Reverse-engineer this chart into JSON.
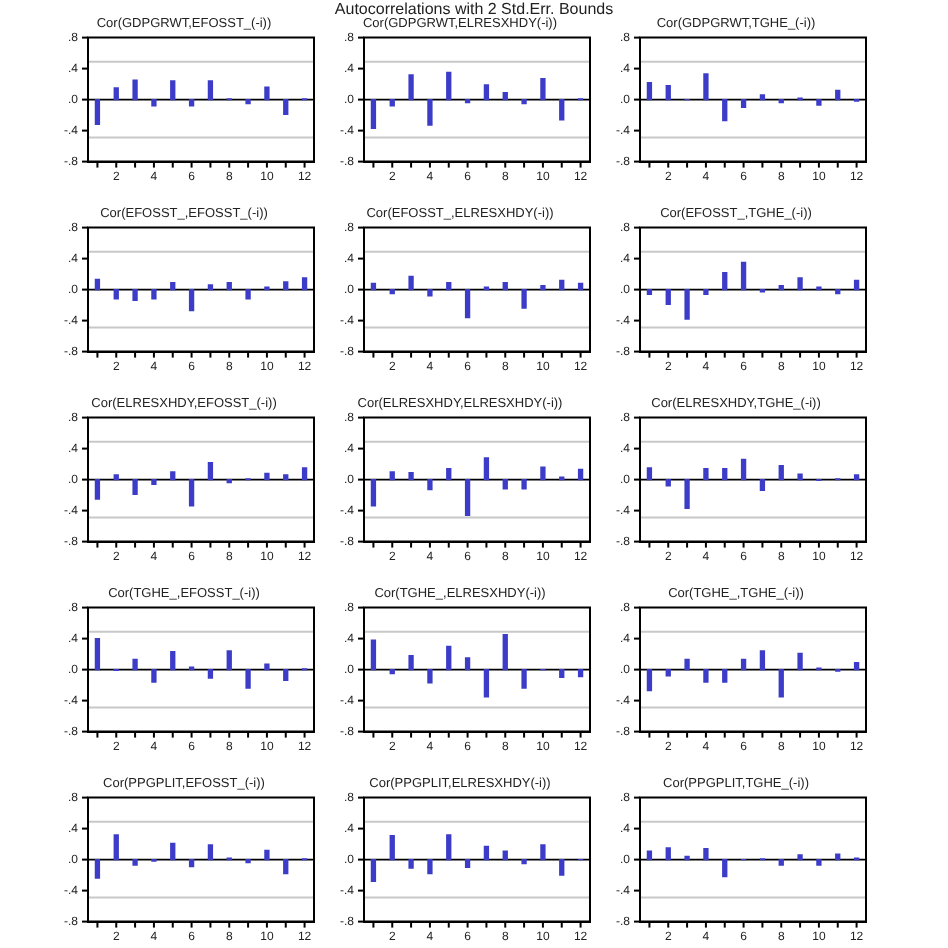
{
  "chart_data": [
    {
      "type": "bar",
      "annotations": [
        "Autocorrelations with 2 Std.Err. Bounds"
      ],
      "title": "Cor(GDPGRWT,EFOSST_(-i))",
      "x": [
        1,
        2,
        3,
        4,
        5,
        6,
        7,
        8,
        9,
        10,
        11,
        12
      ],
      "values": [
        -0.32,
        0.15,
        0.25,
        -0.08,
        0.24,
        -0.08,
        0.24,
        0.01,
        -0.05,
        0.16,
        -0.19,
        0.01
      ],
      "color": "#3c3cc8",
      "xlim": [
        0.5,
        12.5
      ],
      "xticks": [
        {
          "value": 1,
          "label": null
        },
        2,
        {
          "value": 3,
          "label": null
        },
        4,
        {
          "value": 5,
          "label": null
        },
        6,
        {
          "value": 7,
          "label": null
        },
        8,
        {
          "value": 9,
          "label": null
        },
        10,
        {
          "value": 11,
          "label": null
        },
        12
      ],
      "ylim": [
        -0.8,
        0.8
      ],
      "yticks": [
        {
          "value": -0.8,
          "label": "-.8"
        },
        {
          "value": -0.4,
          "label": "-.4"
        },
        {
          "value": 0,
          "label": ".0"
        },
        {
          "value": 0.4,
          "label": ".4"
        },
        {
          "value": 0.8,
          "label": ".8"
        }
      ],
      "ref_lines": [
        {
          "axis": "y",
          "value": 0.49,
          "color": "#c8c8c8"
        },
        {
          "axis": "y",
          "value": -0.49,
          "color": "#c8c8c8"
        }
      ]
    },
    {
      "type": "bar",
      "title": "Cor(GDPGRWT,ELRESXHDY(-i))",
      "x": [
        1,
        2,
        3,
        4,
        5,
        6,
        7,
        8,
        9,
        10,
        11,
        12
      ],
      "values": [
        -0.37,
        -0.08,
        0.32,
        -0.33,
        0.35,
        -0.04,
        0.19,
        0.09,
        -0.05,
        0.27,
        -0.26,
        0.01
      ],
      "color": "#3c3cc8",
      "xlim": [
        0.5,
        12.5
      ],
      "xticks": [
        {
          "value": 1,
          "label": null
        },
        2,
        {
          "value": 3,
          "label": null
        },
        4,
        {
          "value": 5,
          "label": null
        },
        6,
        {
          "value": 7,
          "label": null
        },
        8,
        {
          "value": 9,
          "label": null
        },
        10,
        {
          "value": 11,
          "label": null
        },
        12
      ],
      "ylim": [
        -0.8,
        0.8
      ],
      "yticks": [
        {
          "value": -0.8,
          "label": "-.8"
        },
        {
          "value": -0.4,
          "label": "-.4"
        },
        {
          "value": 0,
          "label": ".0"
        },
        {
          "value": 0.4,
          "label": ".4"
        },
        {
          "value": 0.8,
          "label": ".8"
        }
      ],
      "ref_lines": [
        {
          "axis": "y",
          "value": 0.49,
          "color": "#c8c8c8"
        },
        {
          "axis": "y",
          "value": -0.49,
          "color": "#c8c8c8"
        }
      ]
    },
    {
      "type": "bar",
      "title": "Cor(GDPGRWT,TGHE_(-i))",
      "x": [
        1,
        2,
        3,
        4,
        5,
        6,
        7,
        8,
        9,
        10,
        11,
        12
      ],
      "values": [
        0.22,
        0.18,
        0.0,
        0.33,
        -0.27,
        -0.1,
        0.06,
        -0.04,
        0.02,
        -0.07,
        0.12,
        -0.02
      ],
      "color": "#3c3cc8",
      "xlim": [
        0.5,
        12.5
      ],
      "xticks": [
        {
          "value": 1,
          "label": null
        },
        2,
        {
          "value": 3,
          "label": null
        },
        4,
        {
          "value": 5,
          "label": null
        },
        6,
        {
          "value": 7,
          "label": null
        },
        8,
        {
          "value": 9,
          "label": null
        },
        10,
        {
          "value": 11,
          "label": null
        },
        12
      ],
      "ylim": [
        -0.8,
        0.8
      ],
      "yticks": [
        {
          "value": -0.8,
          "label": "-.8"
        },
        {
          "value": -0.4,
          "label": "-.4"
        },
        {
          "value": 0,
          "label": ".0"
        },
        {
          "value": 0.4,
          "label": ".4"
        },
        {
          "value": 0.8,
          "label": ".8"
        }
      ],
      "ref_lines": [
        {
          "axis": "y",
          "value": 0.49,
          "color": "#c8c8c8"
        },
        {
          "axis": "y",
          "value": -0.49,
          "color": "#c8c8c8"
        }
      ]
    },
    {
      "type": "bar",
      "title": "Cor(EFOSST_,EFOSST_(-i))",
      "x": [
        1,
        2,
        3,
        4,
        5,
        6,
        7,
        8,
        9,
        10,
        11,
        12
      ],
      "values": [
        0.13,
        -0.12,
        -0.14,
        -0.12,
        0.09,
        -0.27,
        0.06,
        0.09,
        -0.12,
        0.03,
        0.1,
        0.15
      ],
      "color": "#3c3cc8",
      "xlim": [
        0.5,
        12.5
      ],
      "xticks": [
        {
          "value": 1,
          "label": null
        },
        2,
        {
          "value": 3,
          "label": null
        },
        4,
        {
          "value": 5,
          "label": null
        },
        6,
        {
          "value": 7,
          "label": null
        },
        8,
        {
          "value": 9,
          "label": null
        },
        10,
        {
          "value": 11,
          "label": null
        },
        12
      ],
      "ylim": [
        -0.8,
        0.8
      ],
      "yticks": [
        {
          "value": -0.8,
          "label": "-.8"
        },
        {
          "value": -0.4,
          "label": "-.4"
        },
        {
          "value": 0,
          "label": ".0"
        },
        {
          "value": 0.4,
          "label": ".4"
        },
        {
          "value": 0.8,
          "label": ".8"
        }
      ],
      "ref_lines": [
        {
          "axis": "y",
          "value": 0.49,
          "color": "#c8c8c8"
        },
        {
          "axis": "y",
          "value": -0.49,
          "color": "#c8c8c8"
        }
      ]
    },
    {
      "type": "bar",
      "title": "Cor(EFOSST_,ELRESXHDY(-i))",
      "x": [
        1,
        2,
        3,
        4,
        5,
        6,
        7,
        8,
        9,
        10,
        11,
        12
      ],
      "values": [
        0.08,
        -0.05,
        0.17,
        -0.08,
        0.09,
        -0.36,
        0.03,
        0.09,
        -0.24,
        0.05,
        0.12,
        0.08
      ],
      "color": "#3c3cc8",
      "xlim": [
        0.5,
        12.5
      ],
      "xticks": [
        {
          "value": 1,
          "label": null
        },
        2,
        {
          "value": 3,
          "label": null
        },
        4,
        {
          "value": 5,
          "label": null
        },
        6,
        {
          "value": 7,
          "label": null
        },
        8,
        {
          "value": 9,
          "label": null
        },
        10,
        {
          "value": 11,
          "label": null
        },
        12
      ],
      "ylim": [
        -0.8,
        0.8
      ],
      "yticks": [
        {
          "value": -0.8,
          "label": "-.8"
        },
        {
          "value": -0.4,
          "label": "-.4"
        },
        {
          "value": 0,
          "label": ".0"
        },
        {
          "value": 0.4,
          "label": ".4"
        },
        {
          "value": 0.8,
          "label": ".8"
        }
      ],
      "ref_lines": [
        {
          "axis": "y",
          "value": 0.49,
          "color": "#c8c8c8"
        },
        {
          "axis": "y",
          "value": -0.49,
          "color": "#c8c8c8"
        }
      ]
    },
    {
      "type": "bar",
      "title": "Cor(EFOSST_,TGHE_(-i))",
      "x": [
        1,
        2,
        3,
        4,
        5,
        6,
        7,
        8,
        9,
        10,
        11,
        12
      ],
      "values": [
        -0.06,
        -0.19,
        -0.38,
        -0.06,
        0.22,
        0.35,
        -0.03,
        0.05,
        0.15,
        0.03,
        -0.05,
        0.12
      ],
      "color": "#3c3cc8",
      "xlim": [
        0.5,
        12.5
      ],
      "xticks": [
        {
          "value": 1,
          "label": null
        },
        2,
        {
          "value": 3,
          "label": null
        },
        4,
        {
          "value": 5,
          "label": null
        },
        6,
        {
          "value": 7,
          "label": null
        },
        8,
        {
          "value": 9,
          "label": null
        },
        10,
        {
          "value": 11,
          "label": null
        },
        12
      ],
      "ylim": [
        -0.8,
        0.8
      ],
      "yticks": [
        {
          "value": -0.8,
          "label": "-.8"
        },
        {
          "value": -0.4,
          "label": "-.4"
        },
        {
          "value": 0,
          "label": ".0"
        },
        {
          "value": 0.4,
          "label": ".4"
        },
        {
          "value": 0.8,
          "label": ".8"
        }
      ],
      "ref_lines": [
        {
          "axis": "y",
          "value": 0.49,
          "color": "#c8c8c8"
        },
        {
          "axis": "y",
          "value": -0.49,
          "color": "#c8c8c8"
        }
      ]
    },
    {
      "type": "bar",
      "title": "Cor(ELRESXHDY,EFOSST_(-i))",
      "x": [
        1,
        2,
        3,
        4,
        5,
        6,
        7,
        8,
        9,
        10,
        11,
        12
      ],
      "values": [
        -0.25,
        0.06,
        -0.19,
        -0.06,
        0.1,
        -0.34,
        0.22,
        -0.04,
        0.01,
        0.08,
        0.06,
        0.15
      ],
      "color": "#3c3cc8",
      "xlim": [
        0.5,
        12.5
      ],
      "xticks": [
        {
          "value": 1,
          "label": null
        },
        2,
        {
          "value": 3,
          "label": null
        },
        4,
        {
          "value": 5,
          "label": null
        },
        6,
        {
          "value": 7,
          "label": null
        },
        8,
        {
          "value": 9,
          "label": null
        },
        10,
        {
          "value": 11,
          "label": null
        },
        12
      ],
      "ylim": [
        -0.8,
        0.8
      ],
      "yticks": [
        {
          "value": -0.8,
          "label": "-.8"
        },
        {
          "value": -0.4,
          "label": "-.4"
        },
        {
          "value": 0,
          "label": ".0"
        },
        {
          "value": 0.4,
          "label": ".4"
        },
        {
          "value": 0.8,
          "label": ".8"
        }
      ],
      "ref_lines": [
        {
          "axis": "y",
          "value": 0.49,
          "color": "#c8c8c8"
        },
        {
          "axis": "y",
          "value": -0.49,
          "color": "#c8c8c8"
        }
      ]
    },
    {
      "type": "bar",
      "title": "Cor(ELRESXHDY,ELRESXHDY(-i))",
      "x": [
        1,
        2,
        3,
        4,
        5,
        6,
        7,
        8,
        9,
        10,
        11,
        12
      ],
      "values": [
        -0.34,
        0.1,
        0.09,
        -0.13,
        0.14,
        -0.46,
        0.28,
        -0.12,
        -0.12,
        0.16,
        0.03,
        0.13
      ],
      "color": "#3c3cc8",
      "xlim": [
        0.5,
        12.5
      ],
      "xticks": [
        {
          "value": 1,
          "label": null
        },
        2,
        {
          "value": 3,
          "label": null
        },
        4,
        {
          "value": 5,
          "label": null
        },
        6,
        {
          "value": 7,
          "label": null
        },
        8,
        {
          "value": 9,
          "label": null
        },
        10,
        {
          "value": 11,
          "label": null
        },
        12
      ],
      "ylim": [
        -0.8,
        0.8
      ],
      "yticks": [
        {
          "value": -0.8,
          "label": "-.8"
        },
        {
          "value": -0.4,
          "label": "-.4"
        },
        {
          "value": 0,
          "label": ".0"
        },
        {
          "value": 0.4,
          "label": ".4"
        },
        {
          "value": 0.8,
          "label": ".8"
        }
      ],
      "ref_lines": [
        {
          "axis": "y",
          "value": 0.49,
          "color": "#c8c8c8"
        },
        {
          "axis": "y",
          "value": -0.49,
          "color": "#c8c8c8"
        }
      ]
    },
    {
      "type": "bar",
      "title": "Cor(ELRESXHDY,TGHE_(-i))",
      "x": [
        1,
        2,
        3,
        4,
        5,
        6,
        7,
        8,
        9,
        10,
        11,
        12
      ],
      "values": [
        0.15,
        -0.08,
        -0.37,
        0.14,
        0.14,
        0.26,
        -0.14,
        0.18,
        0.07,
        -0.01,
        0.01,
        0.06
      ],
      "color": "#3c3cc8",
      "xlim": [
        0.5,
        12.5
      ],
      "xticks": [
        {
          "value": 1,
          "label": null
        },
        2,
        {
          "value": 3,
          "label": null
        },
        4,
        {
          "value": 5,
          "label": null
        },
        6,
        {
          "value": 7,
          "label": null
        },
        8,
        {
          "value": 9,
          "label": null
        },
        10,
        {
          "value": 11,
          "label": null
        },
        12
      ],
      "ylim": [
        -0.8,
        0.8
      ],
      "yticks": [
        {
          "value": -0.8,
          "label": "-.8"
        },
        {
          "value": -0.4,
          "label": "-.4"
        },
        {
          "value": 0,
          "label": ".0"
        },
        {
          "value": 0.4,
          "label": ".4"
        },
        {
          "value": 0.8,
          "label": ".8"
        }
      ],
      "ref_lines": [
        {
          "axis": "y",
          "value": 0.49,
          "color": "#c8c8c8"
        },
        {
          "axis": "y",
          "value": -0.49,
          "color": "#c8c8c8"
        }
      ]
    },
    {
      "type": "bar",
      "title": "Cor(TGHE_,EFOSST_(-i))",
      "x": [
        1,
        2,
        3,
        4,
        5,
        6,
        7,
        8,
        9,
        10,
        11,
        12
      ],
      "values": [
        0.4,
        -0.01,
        0.13,
        -0.16,
        0.23,
        0.03,
        -0.11,
        0.24,
        -0.24,
        0.07,
        -0.14,
        0.01
      ],
      "color": "#3c3cc8",
      "xlim": [
        0.5,
        12.5
      ],
      "xticks": [
        {
          "value": 1,
          "label": null
        },
        2,
        {
          "value": 3,
          "label": null
        },
        4,
        {
          "value": 5,
          "label": null
        },
        6,
        {
          "value": 7,
          "label": null
        },
        8,
        {
          "value": 9,
          "label": null
        },
        10,
        {
          "value": 11,
          "label": null
        },
        12
      ],
      "ylim": [
        -0.8,
        0.8
      ],
      "yticks": [
        {
          "value": -0.8,
          "label": "-.8"
        },
        {
          "value": -0.4,
          "label": "-.4"
        },
        {
          "value": 0,
          "label": ".0"
        },
        {
          "value": 0.4,
          "label": ".4"
        },
        {
          "value": 0.8,
          "label": ".8"
        }
      ],
      "ref_lines": [
        {
          "axis": "y",
          "value": 0.49,
          "color": "#c8c8c8"
        },
        {
          "axis": "y",
          "value": -0.49,
          "color": "#c8c8c8"
        }
      ]
    },
    {
      "type": "bar",
      "title": "Cor(TGHE_,ELRESXHDY(-i))",
      "x": [
        1,
        2,
        3,
        4,
        5,
        6,
        7,
        8,
        9,
        10,
        11,
        12
      ],
      "values": [
        0.38,
        -0.05,
        0.18,
        -0.17,
        0.3,
        0.15,
        -0.35,
        0.45,
        -0.24,
        0.0,
        -0.1,
        -0.09
      ],
      "color": "#3c3cc8",
      "xlim": [
        0.5,
        12.5
      ],
      "xticks": [
        {
          "value": 1,
          "label": null
        },
        2,
        {
          "value": 3,
          "label": null
        },
        4,
        {
          "value": 5,
          "label": null
        },
        6,
        {
          "value": 7,
          "label": null
        },
        8,
        {
          "value": 9,
          "label": null
        },
        10,
        {
          "value": 11,
          "label": null
        },
        12
      ],
      "ylim": [
        -0.8,
        0.8
      ],
      "yticks": [
        {
          "value": -0.8,
          "label": "-.8"
        },
        {
          "value": -0.4,
          "label": "-.4"
        },
        {
          "value": 0,
          "label": ".0"
        },
        {
          "value": 0.4,
          "label": ".4"
        },
        {
          "value": 0.8,
          "label": ".8"
        }
      ],
      "ref_lines": [
        {
          "axis": "y",
          "value": 0.49,
          "color": "#c8c8c8"
        },
        {
          "axis": "y",
          "value": -0.49,
          "color": "#c8c8c8"
        }
      ]
    },
    {
      "type": "bar",
      "title": "Cor(TGHE_,TGHE_(-i))",
      "x": [
        1,
        2,
        3,
        4,
        5,
        6,
        7,
        8,
        9,
        10,
        11,
        12
      ],
      "values": [
        -0.27,
        -0.08,
        0.13,
        -0.16,
        -0.16,
        0.13,
        0.24,
        -0.35,
        0.21,
        0.02,
        -0.02,
        0.09
      ],
      "color": "#3c3cc8",
      "xlim": [
        0.5,
        12.5
      ],
      "xticks": [
        {
          "value": 1,
          "label": null
        },
        2,
        {
          "value": 3,
          "label": null
        },
        4,
        {
          "value": 5,
          "label": null
        },
        6,
        {
          "value": 7,
          "label": null
        },
        8,
        {
          "value": 9,
          "label": null
        },
        10,
        {
          "value": 11,
          "label": null
        },
        12
      ],
      "ylim": [
        -0.8,
        0.8
      ],
      "yticks": [
        {
          "value": -0.8,
          "label": "-.8"
        },
        {
          "value": -0.4,
          "label": "-.4"
        },
        {
          "value": 0,
          "label": ".0"
        },
        {
          "value": 0.4,
          "label": ".4"
        },
        {
          "value": 0.8,
          "label": ".8"
        }
      ],
      "ref_lines": [
        {
          "axis": "y",
          "value": 0.49,
          "color": "#c8c8c8"
        },
        {
          "axis": "y",
          "value": -0.49,
          "color": "#c8c8c8"
        }
      ]
    },
    {
      "type": "bar",
      "title": "Cor(PPGPLIT,EFOSST_(-i))",
      "x": [
        1,
        2,
        3,
        4,
        5,
        6,
        7,
        8,
        9,
        10,
        11,
        12
      ],
      "values": [
        -0.24,
        0.32,
        -0.07,
        -0.02,
        0.21,
        -0.09,
        0.19,
        0.02,
        -0.04,
        0.12,
        -0.18,
        0.01
      ],
      "color": "#3c3cc8",
      "xlim": [
        0.5,
        12.5
      ],
      "xticks": [
        {
          "value": 1,
          "label": null
        },
        2,
        {
          "value": 3,
          "label": null
        },
        4,
        {
          "value": 5,
          "label": null
        },
        6,
        {
          "value": 7,
          "label": null
        },
        8,
        {
          "value": 9,
          "label": null
        },
        10,
        {
          "value": 11,
          "label": null
        },
        12
      ],
      "ylim": [
        -0.8,
        0.8
      ],
      "yticks": [
        {
          "value": -0.8,
          "label": "-.8"
        },
        {
          "value": -0.4,
          "label": "-.4"
        },
        {
          "value": 0,
          "label": ".0"
        },
        {
          "value": 0.4,
          "label": ".4"
        },
        {
          "value": 0.8,
          "label": ".8"
        }
      ],
      "ref_lines": [
        {
          "axis": "y",
          "value": 0.49,
          "color": "#c8c8c8"
        },
        {
          "axis": "y",
          "value": -0.49,
          "color": "#c8c8c8"
        }
      ]
    },
    {
      "type": "bar",
      "title": "Cor(PPGPLIT,ELRESXHDY(-i))",
      "x": [
        1,
        2,
        3,
        4,
        5,
        6,
        7,
        8,
        9,
        10,
        11,
        12
      ],
      "values": [
        -0.28,
        0.31,
        -0.11,
        -0.18,
        0.32,
        -0.1,
        0.17,
        0.11,
        -0.05,
        0.19,
        -0.2,
        0.0
      ],
      "color": "#3c3cc8",
      "xlim": [
        0.5,
        12.5
      ],
      "xticks": [
        {
          "value": 1,
          "label": null
        },
        2,
        {
          "value": 3,
          "label": null
        },
        4,
        {
          "value": 5,
          "label": null
        },
        6,
        {
          "value": 7,
          "label": null
        },
        8,
        {
          "value": 9,
          "label": null
        },
        10,
        {
          "value": 11,
          "label": null
        },
        12
      ],
      "ylim": [
        -0.8,
        0.8
      ],
      "yticks": [
        {
          "value": -0.8,
          "label": "-.8"
        },
        {
          "value": -0.4,
          "label": "-.4"
        },
        {
          "value": 0,
          "label": ".0"
        },
        {
          "value": 0.4,
          "label": ".4"
        },
        {
          "value": 0.8,
          "label": ".8"
        }
      ],
      "ref_lines": [
        {
          "axis": "y",
          "value": 0.49,
          "color": "#c8c8c8"
        },
        {
          "axis": "y",
          "value": -0.49,
          "color": "#c8c8c8"
        }
      ]
    },
    {
      "type": "bar",
      "title": "Cor(PPGPLIT,TGHE_(-i))",
      "x": [
        1,
        2,
        3,
        4,
        5,
        6,
        7,
        8,
        9,
        10,
        11,
        12
      ],
      "values": [
        0.11,
        0.15,
        0.04,
        0.14,
        -0.22,
        0.0,
        0.01,
        -0.07,
        0.06,
        -0.07,
        0.07,
        0.02
      ],
      "color": "#3c3cc8",
      "xlim": [
        0.5,
        12.5
      ],
      "xticks": [
        {
          "value": 1,
          "label": null
        },
        2,
        {
          "value": 3,
          "label": null
        },
        4,
        {
          "value": 5,
          "label": null
        },
        6,
        {
          "value": 7,
          "label": null
        },
        8,
        {
          "value": 9,
          "label": null
        },
        10,
        {
          "value": 11,
          "label": null
        },
        12
      ],
      "ylim": [
        -0.8,
        0.8
      ],
      "yticks": [
        {
          "value": -0.8,
          "label": "-.8"
        },
        {
          "value": -0.4,
          "label": "-.4"
        },
        {
          "value": 0,
          "label": ".0"
        },
        {
          "value": 0.4,
          "label": ".4"
        },
        {
          "value": 0.8,
          "label": ".8"
        }
      ],
      "ref_lines": [
        {
          "axis": "y",
          "value": 0.49,
          "color": "#c8c8c8"
        },
        {
          "axis": "y",
          "value": -0.49,
          "color": "#c8c8c8"
        }
      ]
    }
  ]
}
